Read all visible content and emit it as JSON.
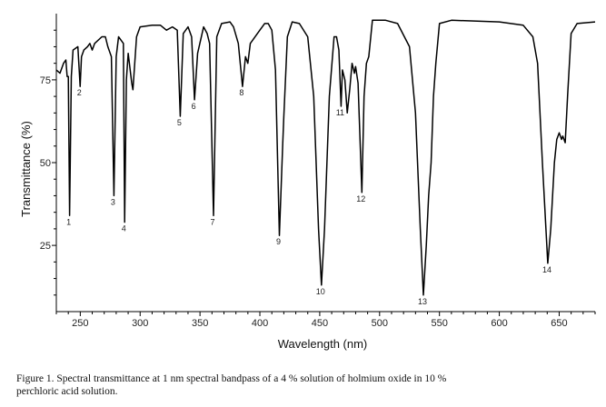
{
  "chart_data": {
    "type": "line",
    "xlabel": "Wavelength (nm)",
    "ylabel": "Transmittance (%)",
    "xlim": [
      230,
      680
    ],
    "ylim": [
      5,
      95
    ],
    "x_ticks": [
      250,
      300,
      350,
      400,
      450,
      500,
      550,
      600,
      650
    ],
    "y_ticks": [
      25,
      50,
      75
    ],
    "grid": false,
    "series": [
      {
        "color": "#000000",
        "points": [
          [
            230,
            78
          ],
          [
            233,
            77
          ],
          [
            236,
            80
          ],
          [
            238,
            81
          ],
          [
            239,
            76
          ],
          [
            240,
            76
          ],
          [
            241.1,
            34
          ],
          [
            242.5,
            76
          ],
          [
            244,
            84
          ],
          [
            248,
            85
          ],
          [
            249.9,
            73
          ],
          [
            251,
            82
          ],
          [
            253,
            84
          ],
          [
            256,
            85
          ],
          [
            258,
            86
          ],
          [
            260,
            84
          ],
          [
            262,
            86
          ],
          [
            268,
            88
          ],
          [
            271,
            88
          ],
          [
            273,
            85
          ],
          [
            275,
            83
          ],
          [
            276,
            82
          ],
          [
            278.1,
            40
          ],
          [
            280,
            82
          ],
          [
            282,
            88
          ],
          [
            284,
            87
          ],
          [
            286,
            86
          ],
          [
            287.1,
            32
          ],
          [
            288.5,
            75
          ],
          [
            290,
            83
          ],
          [
            293,
            74
          ],
          [
            294,
            72
          ],
          [
            297,
            88
          ],
          [
            300,
            91
          ],
          [
            310,
            91.5
          ],
          [
            317,
            91.5
          ],
          [
            322,
            90
          ],
          [
            327,
            91
          ],
          [
            331,
            90
          ],
          [
            333.5,
            64
          ],
          [
            336,
            89
          ],
          [
            340,
            91
          ],
          [
            343,
            88
          ],
          [
            345.4,
            69
          ],
          [
            348,
            83
          ],
          [
            353,
            91
          ],
          [
            356,
            89
          ],
          [
            358,
            86
          ],
          [
            361.3,
            34
          ],
          [
            364,
            88
          ],
          [
            368,
            92
          ],
          [
            375,
            92.5
          ],
          [
            378,
            91
          ],
          [
            382,
            86
          ],
          [
            385.5,
            73
          ],
          [
            388,
            82
          ],
          [
            390,
            80
          ],
          [
            392,
            86
          ],
          [
            400,
            90
          ],
          [
            404,
            92
          ],
          [
            407,
            92
          ],
          [
            410,
            90
          ],
          [
            413,
            78
          ],
          [
            416.3,
            28
          ],
          [
            419,
            55
          ],
          [
            420,
            64
          ],
          [
            423,
            88
          ],
          [
            427,
            92.5
          ],
          [
            433,
            92
          ],
          [
            440,
            88
          ],
          [
            445,
            70
          ],
          [
            449,
            30
          ],
          [
            451.4,
            13
          ],
          [
            454,
            30
          ],
          [
            458,
            70
          ],
          [
            462,
            88
          ],
          [
            464,
            88
          ],
          [
            466,
            84
          ],
          [
            467.8,
            67
          ],
          [
            469,
            78
          ],
          [
            471,
            75
          ],
          [
            473,
            65
          ],
          [
            475,
            72
          ],
          [
            477,
            80
          ],
          [
            479,
            77
          ],
          [
            480,
            79
          ],
          [
            482,
            74
          ],
          [
            485.2,
            41
          ],
          [
            487,
            70
          ],
          [
            489,
            80
          ],
          [
            491,
            82
          ],
          [
            494,
            93
          ],
          [
            505,
            93
          ],
          [
            515,
            92
          ],
          [
            525,
            85
          ],
          [
            530,
            65
          ],
          [
            534,
            30
          ],
          [
            536.6,
            10
          ],
          [
            539,
            25
          ],
          [
            541,
            40
          ],
          [
            543,
            50
          ],
          [
            545,
            70
          ],
          [
            547,
            80
          ],
          [
            550,
            92
          ],
          [
            560,
            93
          ],
          [
            600,
            92.5
          ],
          [
            620,
            91.5
          ],
          [
            628,
            88
          ],
          [
            632,
            80
          ],
          [
            636,
            50
          ],
          [
            640.5,
            19.6
          ],
          [
            643,
            30
          ],
          [
            646,
            50
          ],
          [
            648,
            57
          ],
          [
            650,
            59
          ],
          [
            652,
            57
          ],
          [
            653,
            58
          ],
          [
            655,
            56
          ],
          [
            657,
            70
          ],
          [
            660,
            89
          ],
          [
            665,
            92
          ],
          [
            680,
            92.5
          ]
        ]
      }
    ],
    "peak_labels": [
      {
        "label": "1",
        "x": 241.1,
        "y": 34
      },
      {
        "label": "2",
        "x": 249.9,
        "y": 73
      },
      {
        "label": "3",
        "x": 278.1,
        "y": 40
      },
      {
        "label": "4",
        "x": 287.1,
        "y": 32
      },
      {
        "label": "5",
        "x": 333.5,
        "y": 64
      },
      {
        "label": "6",
        "x": 345.4,
        "y": 69
      },
      {
        "label": "7",
        "x": 361.3,
        "y": 34
      },
      {
        "label": "8",
        "x": 385.5,
        "y": 73
      },
      {
        "label": "9",
        "x": 416.3,
        "y": 28
      },
      {
        "label": "10",
        "x": 451.4,
        "y": 13
      },
      {
        "label": "11",
        "x": 467.8,
        "y": 67
      },
      {
        "label": "12",
        "x": 485.2,
        "y": 41
      },
      {
        "label": "13",
        "x": 536.6,
        "y": 10
      },
      {
        "label": "14",
        "x": 640.5,
        "y": 19.6
      }
    ]
  },
  "caption": {
    "line1": "Figure 1.  Spectral transmittance at 1 nm spectral bandpass of a 4 % solution of holmium oxide in 10 %",
    "line2": "perchloric acid solution."
  }
}
